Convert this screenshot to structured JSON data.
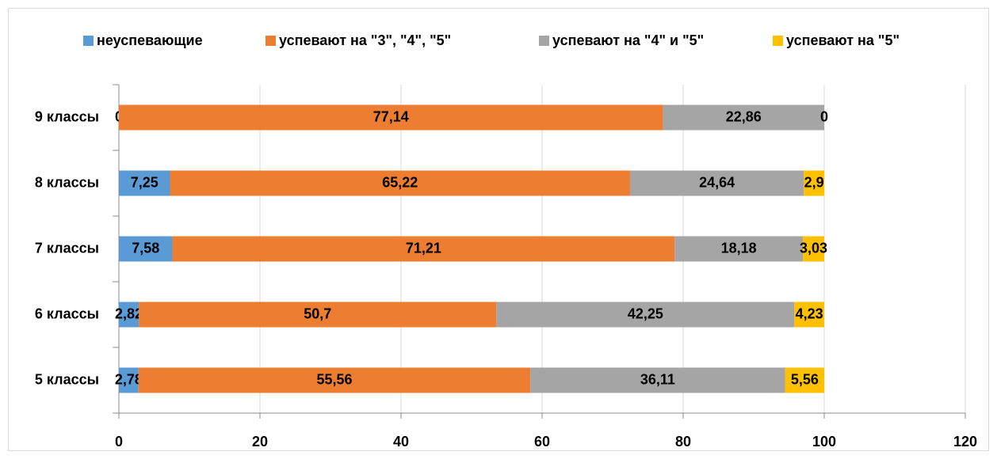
{
  "chart_data": {
    "type": "stacked_bar",
    "orientation": "horizontal",
    "categories": [
      "9 классы",
      "8 классы",
      "7 классы",
      "6 классы",
      "5 классы"
    ],
    "series": [
      {
        "name": "неуспевающие",
        "color": "#5b9bd5",
        "values": [
          0,
          7.25,
          7.58,
          2.82,
          2.78
        ],
        "value_labels": [
          "0",
          "7,25",
          "7,58",
          "2,82",
          "2,78"
        ]
      },
      {
        "name": "успевают на \"3\", \"4\", \"5\"",
        "color": "#ed7d31",
        "values": [
          77.14,
          65.22,
          71.21,
          50.7,
          55.56
        ],
        "value_labels": [
          "77,14",
          "65,22",
          "71,21",
          "50,7",
          "55,56"
        ]
      },
      {
        "name": "успевают на \"4\" и \"5\"",
        "color": "#a5a5a5",
        "values": [
          22.86,
          24.64,
          18.18,
          42.25,
          36.11
        ],
        "value_labels": [
          "22,86",
          "24,64",
          "18,18",
          "42,25",
          "36,11"
        ]
      },
      {
        "name": "успевают на \"5\"",
        "color": "#ffc000",
        "values": [
          0,
          2.9,
          3.03,
          4.23,
          5.56
        ],
        "value_labels": [
          "0",
          "2,9",
          "3,03",
          "4,23",
          "5,56"
        ]
      }
    ],
    "xlim": [
      0,
      120
    ],
    "xticks": [
      0,
      20,
      40,
      60,
      80,
      100,
      120
    ],
    "grid": true,
    "legend": "top"
  }
}
